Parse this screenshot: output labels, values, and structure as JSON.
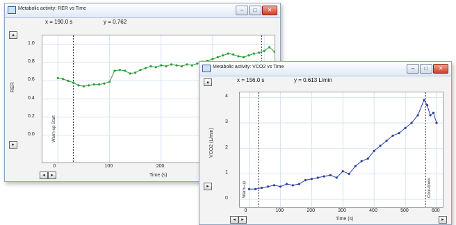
{
  "windows": [
    {
      "title": "Metabolic activity: RER vs Time",
      "readout": {
        "x": "x = 190.0 s",
        "y": "y = 0.762"
      },
      "controls": {
        "minimize": "–",
        "maximize": "□",
        "close": "✕"
      },
      "ylabel": "RER",
      "xlabel": "Time (s)",
      "vline_label": "Warm-up Start",
      "accent": "#2f9e3a"
    },
    {
      "title": "Metabolic activity: VCO2 vs Time",
      "readout": {
        "x": "x = 156.0 s",
        "y": "y = 0.613 L/min"
      },
      "controls": {
        "minimize": "–",
        "maximize": "□",
        "close": "✕"
      },
      "ylabel": "VCO2 (L/min)",
      "xlabel": "Time (s)",
      "vline_label": "Warm-up",
      "vline_label2": "Cool-down",
      "accent": "#2b3ea8"
    }
  ],
  "chart_data": [
    {
      "type": "scatter",
      "xlabel": "Time (s)",
      "ylabel": "RER",
      "xlim": [
        -30,
        420
      ],
      "ylim": [
        -0.3,
        1.1
      ],
      "xticks": [
        "0",
        "100",
        "200",
        "300",
        "400"
      ],
      "yticks": [
        "0.0",
        "0.2",
        "0.4",
        "0.6",
        "0.8",
        "1.0"
      ],
      "grid": true,
      "series": [
        {
          "x": [
            0,
            10,
            20,
            30,
            40,
            50,
            60,
            70,
            80,
            90,
            100,
            110,
            120,
            130,
            140,
            150,
            160,
            170,
            180,
            190,
            200,
            210,
            220,
            230,
            240,
            250,
            260,
            270,
            280,
            290,
            300,
            310,
            320,
            330,
            340,
            350,
            360,
            370,
            380,
            390,
            400,
            410,
            420
          ],
          "values": [
            0.63,
            0.62,
            0.6,
            0.58,
            0.55,
            0.54,
            0.55,
            0.56,
            0.56,
            0.57,
            0.59,
            0.71,
            0.72,
            0.71,
            0.68,
            0.69,
            0.72,
            0.74,
            0.76,
            0.75,
            0.77,
            0.76,
            0.78,
            0.77,
            0.76,
            0.78,
            0.77,
            0.79,
            0.81,
            0.82,
            0.84,
            0.86,
            0.88,
            0.9,
            0.89,
            0.87,
            0.86,
            0.88,
            0.9,
            0.91,
            0.93,
            0.97,
            0.92
          ]
        }
      ],
      "vlines": [
        30,
        395
      ]
    },
    {
      "type": "scatter",
      "xlabel": "Time (s)",
      "ylabel": "VCO2 (L/min)",
      "xlim": [
        -30,
        620
      ],
      "ylim": [
        -0.3,
        4.2
      ],
      "xticks": [
        "0",
        "100",
        "200",
        "300",
        "400",
        "500",
        "600"
      ],
      "yticks": [
        "0",
        "1",
        "2",
        "3",
        "4"
      ],
      "grid": true,
      "series": [
        {
          "x": [
            0,
            20,
            40,
            60,
            80,
            100,
            120,
            140,
            160,
            180,
            200,
            220,
            240,
            260,
            280,
            300,
            320,
            340,
            360,
            380,
            400,
            420,
            440,
            460,
            480,
            500,
            520,
            540,
            560,
            570,
            580,
            590,
            600
          ],
          "values": [
            0.4,
            0.4,
            0.45,
            0.5,
            0.55,
            0.5,
            0.6,
            0.55,
            0.6,
            0.75,
            0.8,
            0.85,
            0.9,
            0.95,
            0.85,
            1.1,
            1.0,
            1.3,
            1.5,
            1.6,
            1.9,
            2.1,
            2.3,
            2.5,
            2.6,
            2.8,
            3.0,
            3.3,
            3.9,
            3.7,
            3.3,
            3.4,
            3.0
          ]
        }
      ],
      "vlines": [
        30,
        565
      ]
    }
  ]
}
